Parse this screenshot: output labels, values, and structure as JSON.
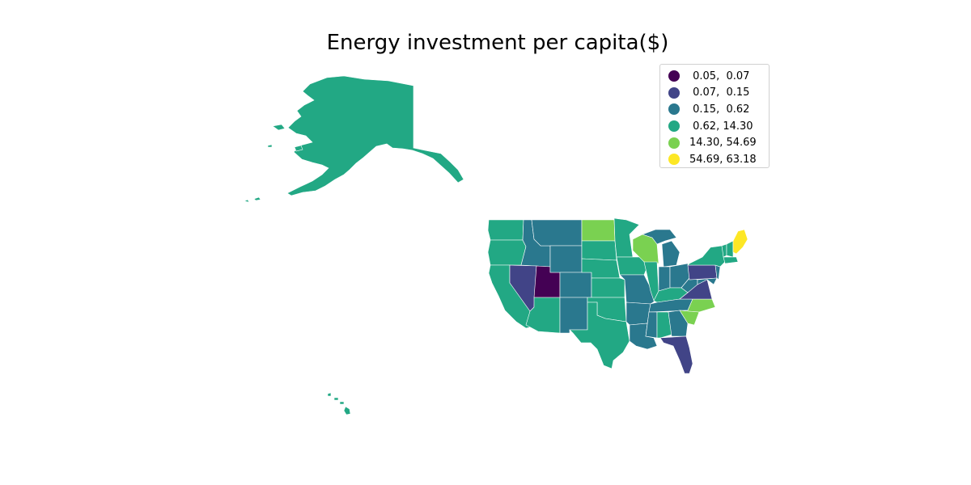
{
  "title": "Energy investment per capita($)",
  "palette": {
    "c1": "#440154",
    "c2": "#414487",
    "c3": "#2a788e",
    "c4": "#22a884",
    "c5": "#7ad151",
    "c6": "#fde725"
  },
  "legend": {
    "placement": "top-right",
    "items": [
      {
        "label": " 0.05,  0.07",
        "color": "#440154"
      },
      {
        "label": " 0.07,  0.15",
        "color": "#414487"
      },
      {
        "label": " 0.15,  0.62",
        "color": "#2a788e"
      },
      {
        "label": " 0.62, 14.30",
        "color": "#22a884"
      },
      {
        "label": "14.30, 54.69",
        "color": "#7ad151"
      },
      {
        "label": "54.69, 63.18",
        "color": "#fde725"
      }
    ]
  },
  "chart_data": {
    "type": "choropleth",
    "title": "Energy investment per capita($)",
    "classes": [
      [
        0.05,
        0.07
      ],
      [
        0.07,
        0.15
      ],
      [
        0.15,
        0.62
      ],
      [
        0.62,
        14.3
      ],
      [
        14.3,
        54.69
      ],
      [
        54.69,
        63.18
      ]
    ],
    "state_class": {
      "alaska": 4,
      "hawaii": 4,
      "washington": 4,
      "oregon": 4,
      "california": 4,
      "idaho": 3,
      "nevada": 2,
      "utah": 1,
      "arizona": 4,
      "montana": 3,
      "wyoming": 3,
      "colorado": 3,
      "new-mexico": 3,
      "north-dakota": 5,
      "south-dakota": 4,
      "nebraska": 4,
      "kansas": 4,
      "oklahoma": 4,
      "texas": 4,
      "minnesota": 4,
      "iowa": 4,
      "missouri": 3,
      "arkansas": 3,
      "louisiana": 3,
      "wisconsin": 5,
      "illinois": 4,
      "michigan": 3,
      "indiana": 3,
      "ohio": 3,
      "kentucky": 4,
      "tennessee": 3,
      "mississippi": 3,
      "alabama": 4,
      "georgia": 3,
      "florida": 2,
      "south-carolina": 5,
      "north-carolina": 5,
      "virginia": 2,
      "west-virginia": 3,
      "pennsylvania": 2,
      "new-york": 4,
      "maine": 6,
      "new-hampshire": 4,
      "vermont": 4,
      "massachusetts": 4,
      "new-jersey": 3,
      "maryland": 3
    }
  }
}
